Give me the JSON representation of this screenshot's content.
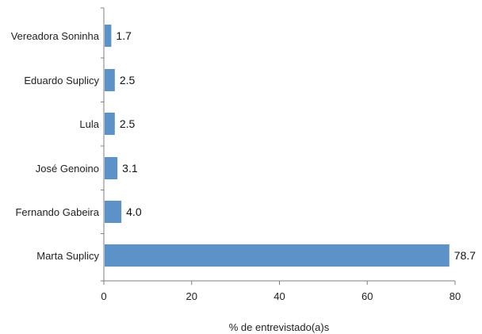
{
  "chart_data": {
    "type": "bar",
    "orientation": "horizontal",
    "categories": [
      "Vereadora Soninha",
      "Eduardo Suplicy",
      "Lula",
      "José Genoino",
      "Fernando Gabeira",
      "Marta Suplicy"
    ],
    "values": [
      1.7,
      2.5,
      2.5,
      3.1,
      4.0,
      78.7
    ],
    "value_labels": [
      "1.7",
      "2.5",
      "2.5",
      "3.1",
      "4.0",
      "78.7"
    ],
    "xlabel": "% de entrevistado(a)s",
    "xlim": [
      0,
      80
    ],
    "xticks": [
      0,
      20,
      40,
      60,
      80
    ],
    "bar_color": "#5b93c9",
    "grid": false,
    "legend": "none"
  }
}
